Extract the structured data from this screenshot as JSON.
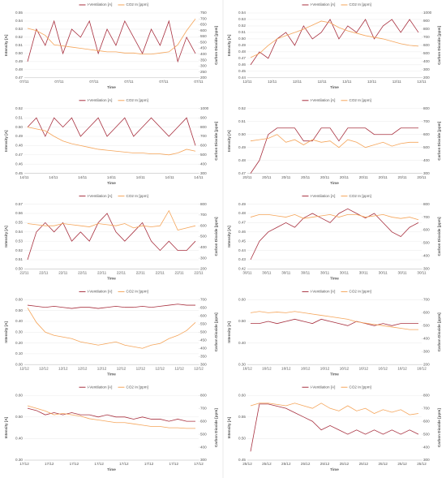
{
  "chart_data": [
    {
      "type": "line",
      "x_label": "Time",
      "y_label": "Intensity [A]",
      "y2_label": "Carbon Dioxide [ppm]",
      "xtick_labels": [
        "07/11",
        "07/11",
        "07/11",
        "07/11",
        "07/11",
        "07/11"
      ],
      "ylim": [
        0.47,
        0.55
      ],
      "yticks": [
        0.47,
        0.48,
        0.49,
        {
          "value": 0.5,
          "label": "0.50"
        },
        0.51,
        0.52,
        0.53,
        0.54,
        0.55
      ],
      "y2lim": [
        200,
        750
      ],
      "y2ticks": [
        200,
        250,
        300,
        350,
        400,
        450,
        500,
        550,
        600,
        650,
        700,
        750
      ],
      "series": [
        {
          "name": "I-Ventilation [A]",
          "color": "#a8303f",
          "values": [
            0.49,
            0.53,
            0.51,
            0.54,
            0.5,
            0.53,
            0.52,
            0.54,
            0.5,
            0.53,
            0.51,
            0.54,
            0.52,
            0.5,
            0.53,
            0.51,
            0.54,
            0.49,
            0.52,
            0.5
          ]
        },
        {
          "name": "CO2 In [ppm]",
          "color": "#f5a55a",
          "axis": "y2",
          "values": [
            620,
            600,
            560,
            480,
            470,
            460,
            450,
            440,
            430,
            420,
            420,
            410,
            410,
            400,
            400,
            410,
            420,
            480,
            600,
            700
          ]
        }
      ]
    },
    {
      "type": "line",
      "x_label": "Time",
      "y_label": "Intensity [A]",
      "y2_label": "Carbon Dioxide [ppm]",
      "xtick_labels": [
        "12/11",
        "12/11",
        "12/11",
        "12/11",
        "12/11",
        "12/11",
        "12/11",
        "12/11"
      ],
      "ylim": [
        0.44,
        0.54
      ],
      "yticks": [
        0.44,
        0.45,
        0.46,
        0.47,
        0.48,
        0.49,
        {
          "value": 0.5,
          "label": "0.50"
        },
        0.51,
        0.52,
        0.53,
        0.54
      ],
      "y2lim": [
        200,
        1000
      ],
      "y2ticks": [
        200,
        300,
        400,
        500,
        600,
        700,
        800,
        900,
        1000
      ],
      "series": [
        {
          "name": "I-Ventilation [A]",
          "color": "#a8303f",
          "values": [
            0.46,
            0.48,
            0.47,
            0.5,
            0.51,
            0.49,
            0.52,
            0.5,
            0.51,
            0.53,
            0.5,
            0.52,
            0.51,
            0.53,
            0.5,
            0.52,
            0.53,
            0.51,
            0.53,
            0.51
          ]
        },
        {
          "name": "CO2 In [ppm]",
          "color": "#f5a55a",
          "axis": "y2",
          "values": [
            450,
            500,
            600,
            680,
            720,
            760,
            800,
            850,
            900,
            880,
            820,
            780,
            750,
            720,
            700,
            680,
            650,
            620,
            600,
            590
          ]
        }
      ]
    },
    {
      "type": "line",
      "x_label": "Time",
      "y_label": "Intensity [A]",
      "y2_label": "Carbon Dioxide [ppm]",
      "xtick_labels": [
        "14/11",
        "14/11",
        "14/11",
        "14/11",
        "14/11",
        "14/11",
        "14/11"
      ],
      "ylim": [
        0.45,
        0.52
      ],
      "yticks": [
        0.45,
        0.46,
        0.47,
        0.48,
        0.49,
        {
          "value": 0.5,
          "label": "0.50"
        },
        0.51,
        0.52
      ],
      "y2lim": [
        300,
        1000
      ],
      "y2ticks": [
        300,
        400,
        500,
        600,
        700,
        800,
        900,
        1000
      ],
      "series": [
        {
          "name": "I-Ventilation [A]",
          "color": "#a8303f",
          "values": [
            0.5,
            0.51,
            0.49,
            0.51,
            0.5,
            0.51,
            0.49,
            0.5,
            0.51,
            0.49,
            0.5,
            0.51,
            0.49,
            0.5,
            0.51,
            0.5,
            0.49,
            0.5,
            0.51,
            0.48
          ]
        },
        {
          "name": "CO2 In [ppm]",
          "color": "#f5a55a",
          "axis": "y2",
          "values": [
            800,
            780,
            760,
            700,
            650,
            620,
            600,
            580,
            560,
            550,
            540,
            530,
            520,
            520,
            510,
            510,
            500,
            520,
            560,
            540
          ]
        }
      ]
    },
    {
      "type": "line",
      "x_label": "Time",
      "y_label": "Intensity [A]",
      "y2_label": "Carbon Dioxide [ppm]",
      "xtick_labels": [
        "20/11",
        "20/11",
        "20/11",
        "20/11",
        "20/11",
        "20/11",
        "20/11",
        "20/11",
        "20/11",
        "20/11"
      ],
      "ylim": [
        0.47,
        0.52
      ],
      "yticks": [
        0.47,
        0.48,
        0.49,
        {
          "value": 0.5,
          "label": "0.50"
        },
        0.51,
        0.52
      ],
      "y2lim": [
        300,
        800
      ],
      "y2ticks": [
        300,
        400,
        500,
        600,
        700,
        800
      ],
      "series": [
        {
          "name": "I-Ventilation [A]",
          "color": "#a8303f",
          "values": [
            0.47,
            0.48,
            0.5,
            0.505,
            0.505,
            0.505,
            0.495,
            0.495,
            0.505,
            0.505,
            0.495,
            0.505,
            0.505,
            0.505,
            0.5,
            0.5,
            0.5,
            0.505,
            0.505,
            0.505
          ]
        },
        {
          "name": "CO2 In [ppm]",
          "color": "#f5a55a",
          "axis": "y2",
          "values": [
            550,
            560,
            570,
            600,
            540,
            560,
            520,
            560,
            540,
            550,
            500,
            560,
            540,
            500,
            520,
            540,
            510,
            530,
            540,
            540
          ]
        }
      ]
    },
    {
      "type": "line",
      "x_label": "Time",
      "y_label": "Intensity [A]",
      "y2_label": "Carbon Dioxide [ppm]",
      "xtick_labels": [
        "22/11",
        "22/11",
        "22/11",
        "22/11",
        "22/11",
        "22/11",
        "22/11",
        "22/11",
        "22/11",
        "22/11"
      ],
      "ylim": [
        0.5,
        0.57
      ],
      "yticks": [
        {
          "value": 0.5,
          "label": "0.50"
        },
        0.51,
        0.52,
        0.53,
        0.54,
        0.55,
        0.56,
        0.57
      ],
      "y2lim": [
        200,
        800
      ],
      "y2ticks": [
        200,
        300,
        400,
        500,
        600,
        700,
        800
      ],
      "series": [
        {
          "name": "I-Ventilation [A]",
          "color": "#a8303f",
          "values": [
            0.51,
            0.54,
            0.55,
            0.54,
            0.55,
            0.53,
            0.54,
            0.53,
            0.55,
            0.56,
            0.54,
            0.53,
            0.54,
            0.55,
            0.53,
            0.52,
            0.53,
            0.52,
            0.52,
            0.53
          ]
        },
        {
          "name": "CO2 In [ppm]",
          "color": "#f5a55a",
          "axis": "y2",
          "values": [
            620,
            610,
            600,
            600,
            620,
            610,
            600,
            590,
            620,
            610,
            600,
            620,
            580,
            600,
            590,
            600,
            740,
            560,
            580,
            600
          ]
        }
      ]
    },
    {
      "type": "line",
      "x_label": "Time",
      "y_label": "Intensity [A]",
      "y2_label": "Carbon Dioxide [ppm]",
      "xtick_labels": [
        "30/11",
        "30/11",
        "30/11",
        "30/11",
        "30/11",
        "30/11",
        "30/11",
        "30/11",
        "30/11",
        "30/11"
      ],
      "ylim": [
        0.42,
        0.49
      ],
      "yticks": [
        0.42,
        0.43,
        0.44,
        0.45,
        0.46,
        0.47,
        0.48,
        0.49
      ],
      "y2lim": [
        300,
        800
      ],
      "y2ticks": [
        300,
        400,
        500,
        600,
        700,
        800
      ],
      "series": [
        {
          "name": "I-Ventilation [A]",
          "color": "#a8303f",
          "values": [
            0.43,
            0.45,
            0.46,
            0.465,
            0.47,
            0.465,
            0.475,
            0.48,
            0.475,
            0.47,
            0.48,
            0.485,
            0.48,
            0.475,
            0.48,
            0.47,
            0.46,
            0.455,
            0.465,
            0.47
          ]
        },
        {
          "name": "CO2 In [ppm]",
          "color": "#f5a55a",
          "axis": "y2",
          "values": [
            700,
            720,
            720,
            710,
            700,
            720,
            690,
            700,
            710,
            720,
            700,
            720,
            720,
            700,
            710,
            720,
            700,
            690,
            700,
            680
          ]
        }
      ]
    },
    {
      "type": "line",
      "x_label": "Time",
      "y_label": "Intensity [A]",
      "y2_label": "Carbon Dioxide [ppm]",
      "xtick_labels": [
        "12/12",
        "12/12",
        "12/12",
        "12/12",
        "12/12",
        "12/12",
        "12/12",
        "12/12",
        "12/12",
        "12/12"
      ],
      "ylim": [
        0,
        0.6
      ],
      "yticks": [
        {
          "value": 0,
          "label": "0.00"
        },
        {
          "value": 0.1,
          "label": "0.10"
        },
        {
          "value": 0.2,
          "label": "0.20"
        },
        {
          "value": 0.3,
          "label": "0.30"
        },
        {
          "value": 0.4,
          "label": "0.40"
        },
        {
          "value": 0.5,
          "label": "0.50"
        },
        {
          "value": 0.6,
          "label": "0.60"
        }
      ],
      "y2lim": [
        300,
        700
      ],
      "y2ticks": [
        300,
        350,
        400,
        450,
        500,
        550,
        600,
        650,
        700
      ],
      "series": [
        {
          "name": "I-Ventilation [A]",
          "color": "#a8303f",
          "values": [
            0.55,
            0.54,
            0.53,
            0.54,
            0.53,
            0.52,
            0.53,
            0.53,
            0.52,
            0.53,
            0.54,
            0.53,
            0.53,
            0.54,
            0.53,
            0.54,
            0.55,
            0.56,
            0.55,
            0.55
          ]
        },
        {
          "name": "CO2 In [ppm]",
          "color": "#f5a55a",
          "axis": "y2",
          "values": [
            650,
            560,
            500,
            480,
            470,
            460,
            440,
            430,
            420,
            430,
            440,
            420,
            410,
            400,
            420,
            430,
            460,
            480,
            510,
            560
          ]
        }
      ]
    },
    {
      "type": "line",
      "x_label": "Time",
      "y_label": "Intensity [A]",
      "y2_label": "Carbon Dioxide [ppm]",
      "xtick_labels": [
        "16/12",
        "16/12",
        "16/12",
        "16/12",
        "16/12",
        "16/12",
        "16/12",
        "16/12",
        "16/12",
        "16/12"
      ],
      "ylim": [
        0.3,
        0.6
      ],
      "yticks": [
        {
          "value": 0.3,
          "label": "0.30"
        },
        {
          "value": 0.4,
          "label": "0.40"
        },
        {
          "value": 0.5,
          "label": "0.50"
        },
        {
          "value": 0.6,
          "label": "0.60"
        }
      ],
      "y2lim": [
        200,
        700
      ],
      "y2ticks": [
        200,
        300,
        400,
        500,
        600,
        700
      ],
      "series": [
        {
          "name": "I-Ventilation [A]",
          "color": "#a8303f",
          "values": [
            0.49,
            0.49,
            0.5,
            0.49,
            0.5,
            0.51,
            0.5,
            0.49,
            0.51,
            0.5,
            0.49,
            0.48,
            0.5,
            0.49,
            0.48,
            0.49,
            0.48,
            0.49,
            0.49,
            0.49
          ]
        },
        {
          "name": "CO2 In [ppm]",
          "color": "#f5a55a",
          "axis": "y2",
          "values": [
            600,
            610,
            600,
            605,
            600,
            610,
            600,
            590,
            580,
            570,
            560,
            550,
            530,
            520,
            510,
            500,
            490,
            480,
            470,
            470
          ]
        }
      ]
    },
    {
      "type": "line",
      "x_label": "Time",
      "y_label": "Intensity [A]",
      "y2_label": "Carbon Dioxide [ppm]",
      "xtick_labels": [
        "17/12",
        "17/12",
        "17/12",
        "17/12",
        "17/12",
        "17/12",
        "17/12",
        "17/12"
      ],
      "ylim": [
        0.3,
        0.6
      ],
      "yticks": [
        {
          "value": 0.3,
          "label": "0.30"
        },
        {
          "value": 0.4,
          "label": "0.40"
        },
        {
          "value": 0.5,
          "label": "0.50"
        },
        {
          "value": 0.6,
          "label": "0.60"
        }
      ],
      "y2lim": [
        300,
        800
      ],
      "y2ticks": [
        300,
        400,
        500,
        600,
        700,
        800
      ],
      "series": [
        {
          "name": "I-Ventilation [A]",
          "color": "#a8303f",
          "values": [
            0.54,
            0.53,
            0.51,
            0.52,
            0.51,
            0.52,
            0.51,
            0.51,
            0.5,
            0.51,
            0.5,
            0.5,
            0.49,
            0.5,
            0.49,
            0.49,
            0.48,
            0.49,
            0.48,
            0.48
          ]
        },
        {
          "name": "CO2 In [ppm]",
          "color": "#f5a55a",
          "axis": "y2",
          "values": [
            720,
            700,
            680,
            650,
            660,
            650,
            640,
            620,
            610,
            600,
            590,
            590,
            580,
            570,
            560,
            560,
            550,
            550,
            545,
            545
          ]
        }
      ]
    },
    {
      "type": "line",
      "x_label": "Time",
      "y_label": "Intensity [A]",
      "y2_label": "Carbon Dioxide [ppm]",
      "xtick_labels": [
        "25/12",
        "25/12",
        "25/12",
        "25/12",
        "25/12",
        "25/12",
        "25/12",
        "25/12",
        "25/12",
        "25/12"
      ],
      "ylim": [
        0.45,
        0.6
      ],
      "yticks": [
        0.45,
        {
          "value": 0.5,
          "label": "0.50"
        },
        0.55,
        {
          "value": 0.6,
          "label": "0.60"
        }
      ],
      "y2lim": [
        300,
        800
      ],
      "y2ticks": [
        300,
        400,
        500,
        600,
        700,
        800
      ],
      "series": [
        {
          "name": "I-Ventilation [A]",
          "color": "#a8303f",
          "values": [
            0.47,
            0.58,
            0.58,
            0.575,
            0.57,
            0.56,
            0.55,
            0.54,
            0.52,
            0.53,
            0.52,
            0.51,
            0.52,
            0.51,
            0.52,
            0.51,
            0.52,
            0.51,
            0.52,
            0.51
          ]
        },
        {
          "name": "CO2 In [ppm]",
          "color": "#f5a55a",
          "axis": "y2",
          "values": [
            720,
            740,
            740,
            730,
            720,
            740,
            720,
            700,
            740,
            700,
            680,
            720,
            680,
            700,
            660,
            690,
            670,
            690,
            650,
            660
          ]
        }
      ]
    }
  ]
}
